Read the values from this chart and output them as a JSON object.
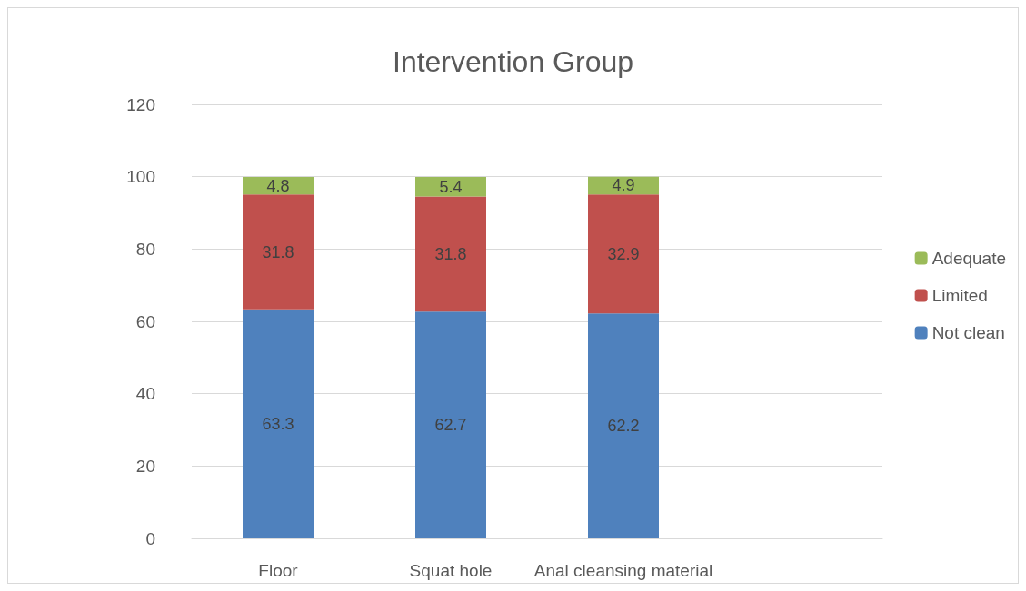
{
  "chart_data": {
    "type": "bar",
    "title": "Intervention Group",
    "categories": [
      "Floor",
      "Squat hole",
      "Anal cleansing material",
      null
    ],
    "stacked": true,
    "series": [
      {
        "name": "Not clean",
        "color": "#4f81bd",
        "values": [
          63.3,
          62.7,
          62.2,
          null
        ]
      },
      {
        "name": "Limited",
        "color": "#c0504d",
        "values": [
          31.8,
          31.8,
          32.9,
          null
        ]
      },
      {
        "name": "Adequate",
        "color": "#9bbb59",
        "values": [
          4.8,
          5.4,
          4.9,
          null
        ]
      }
    ],
    "ylim": [
      0,
      120
    ],
    "yticks": [
      0,
      20,
      40,
      60,
      80,
      100,
      120
    ],
    "grid": "y",
    "legend": "right",
    "data_labels": true
  }
}
